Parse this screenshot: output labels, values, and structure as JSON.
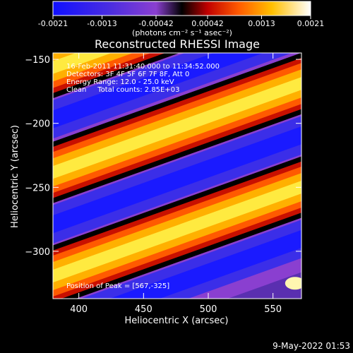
{
  "colorbar": {
    "tick_labels": [
      "-0.0021",
      "-0.0013",
      "-0.00042",
      "0.00042",
      "0.0013",
      "0.0021"
    ],
    "min": -0.0021,
    "max": 0.0021,
    "units_label": "(photons cm⁻² s⁻¹ asec⁻²)"
  },
  "title": "Reconstructed RHESSI Image",
  "annotations": [
    "16-Feb-2011 11:31:40.000 to 11:34:52.000",
    "Detectors: 3F 4F 5F 6F 7F 8F, Att 0",
    "Energy Range: 12.0 - 25.0 keV",
    "Clean     Total counts: 2.85E+03"
  ],
  "peak_label": "Position of Peak = [567,-325]",
  "footer_timestamp": "9-May-2022 01:53",
  "colors": {
    "background": "#000000",
    "low": "#1010ff",
    "mid_low": "#8a3fd0",
    "zero": "#000000",
    "mid_high": "#ff5a00",
    "high": "#ffffff"
  },
  "chart_data": {
    "type": "heatmap",
    "xlabel": "Heliocentric X (arcsec)",
    "ylabel": "Heliocentric Y (arcsec)",
    "xlim": [
      380,
      572
    ],
    "ylim": [
      -337,
      -145
    ],
    "x_ticks": [
      400,
      450,
      500,
      550
    ],
    "y_ticks": [
      -150,
      -200,
      -250,
      -300
    ],
    "peak": [
      567,
      -325
    ],
    "band_orientation": "diagonal stripes rising to the right, alternating bright (positive) and blue/purple (negative)",
    "bright_bands_y_at_x380": [
      -160,
      -242,
      -323
    ],
    "band_slope_arcsec_per_arcsec": 0.38
  }
}
